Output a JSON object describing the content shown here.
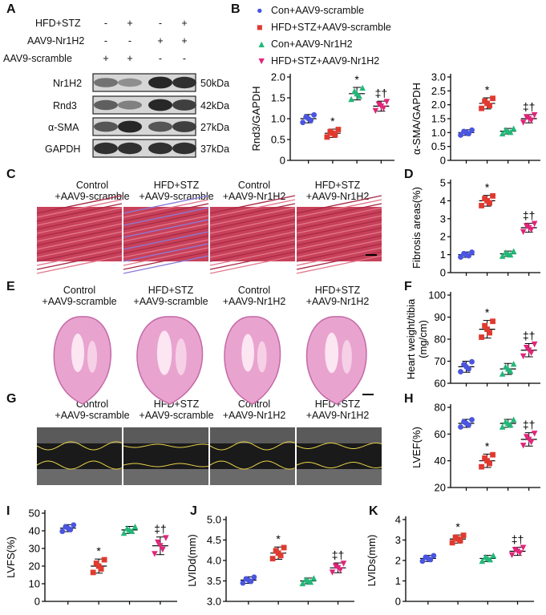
{
  "panels": {
    "A": "A",
    "B": "B",
    "C": "C",
    "D": "D",
    "E": "E",
    "F": "F",
    "G": "G",
    "H": "H",
    "I": "I",
    "J": "J",
    "K": "K"
  },
  "colors": {
    "con_scramble": "#4a55e0",
    "hfd_scramble": "#e03a2f",
    "con_nr1h2": "#22b878",
    "hfd_nr1h2": "#e0257a"
  },
  "panelA": {
    "rows": [
      "HFD+STZ",
      "AAV9-Nr1H2",
      "AAV9-scramble"
    ],
    "signs": [
      [
        "-",
        "+",
        "-",
        "+"
      ],
      [
        "-",
        "-",
        "+",
        "+"
      ],
      [
        "+",
        "+",
        "-",
        "-"
      ]
    ],
    "bands": [
      {
        "name": "Nr1H2",
        "kda": "50kDa",
        "intensity": [
          0.45,
          0.3,
          0.85,
          0.8
        ]
      },
      {
        "name": "Rnd3",
        "kda": "42kDa",
        "intensity": [
          0.55,
          0.38,
          0.85,
          0.72
        ]
      },
      {
        "name": "α-SMA",
        "kda": "27kDa",
        "intensity": [
          0.6,
          0.85,
          0.6,
          0.72
        ]
      },
      {
        "name": "GAPDH",
        "kda": "37kDa",
        "intensity": [
          0.8,
          0.8,
          0.8,
          0.8
        ]
      }
    ]
  },
  "legend": [
    "Con+AAV9-scramble",
    "HFD+STZ+AAV9-scramble",
    "Con+AAV9-Nr1H2",
    "HFD+STZ+AAV9-Nr1H2"
  ],
  "group_labels": {
    "C": [
      [
        "Control",
        "+AAV9-scramble"
      ],
      [
        "HFD+STZ",
        "+AAV9-scramble"
      ],
      [
        "Control",
        "+AAV9-Nr1H2"
      ],
      [
        "HFD+STZ",
        "+AAV9-Nr1H2"
      ]
    ],
    "E": [
      [
        "Control",
        "+AAV9-scramble"
      ],
      [
        "HFD+STZ",
        "+AAV9-scramble"
      ],
      [
        "Control",
        "+AAV9-Nr1H2"
      ],
      [
        "HFD+STZ",
        "+AAV9-Nr1H2"
      ]
    ],
    "G": [
      [
        "Control",
        "+AAV9-scramble"
      ],
      [
        "HFD+STZ",
        "+AAV9-scramble"
      ],
      [
        "Control",
        "+AAV9-Nr1H2"
      ],
      [
        "HFD+STZ",
        "+AAV9-Nr1H2"
      ]
    ]
  },
  "chart_data": [
    {
      "id": "rnd3",
      "type": "scatter",
      "ylabel": "Rnd3/GAPDH",
      "ylim": [
        0,
        2.0
      ],
      "ticks": [
        0,
        0.5,
        1.0,
        1.5,
        2.0
      ],
      "tick_labels": [
        "0",
        "0.5",
        "1.0",
        "1.5",
        "2.0"
      ],
      "means": [
        1.0,
        0.65,
        1.6,
        1.3
      ],
      "sd": [
        0.1,
        0.1,
        0.15,
        0.12
      ],
      "sig": [
        "",
        "*",
        "*",
        "‡†"
      ]
    },
    {
      "id": "asma",
      "type": "scatter",
      "ylabel": "α-SMA/GAPDH",
      "ylim": [
        0,
        3.0
      ],
      "ticks": [
        0,
        0.5,
        1.0,
        1.5,
        2.0,
        2.5,
        3.0
      ],
      "tick_labels": [
        "0",
        "0.5",
        "1.0",
        "1.5",
        "2.0",
        "2.5",
        "3.0"
      ],
      "means": [
        1.0,
        2.05,
        1.05,
        1.5
      ],
      "sd": [
        0.1,
        0.2,
        0.1,
        0.15
      ],
      "sig": [
        "",
        "*",
        "",
        "‡†"
      ]
    },
    {
      "id": "fibrosis",
      "type": "scatter",
      "ylabel": "Fibrosis areas(%)",
      "ylim": [
        0,
        5
      ],
      "ticks": [
        0,
        1,
        2,
        3,
        4,
        5
      ],
      "tick_labels": [
        "0",
        "1",
        "2",
        "3",
        "4",
        "5"
      ],
      "means": [
        1.0,
        4.0,
        1.05,
        2.5
      ],
      "sd": [
        0.15,
        0.3,
        0.15,
        0.25
      ],
      "sig": [
        "",
        "*",
        "",
        "‡†"
      ]
    },
    {
      "id": "hw",
      "type": "scatter",
      "ylabel": "Heart weight/tibia (mg/cm)",
      "ylim": [
        60,
        100
      ],
      "ticks": [
        60,
        70,
        80,
        90,
        100
      ],
      "tick_labels": [
        "60",
        "70",
        "80",
        "90",
        "100"
      ],
      "means": [
        67.5,
        84.5,
        66.5,
        75
      ],
      "sd": [
        2.5,
        4,
        2.5,
        3
      ],
      "sig": [
        "",
        "*",
        "",
        "‡†"
      ]
    },
    {
      "id": "lvef",
      "type": "scatter",
      "ylabel": "LVEF(%)",
      "ylim": [
        20,
        80
      ],
      "ticks": [
        20,
        40,
        60,
        80
      ],
      "tick_labels": [
        "20",
        "40",
        "60",
        "80"
      ],
      "means": [
        68,
        40,
        68,
        56
      ],
      "sd": [
        3,
        5,
        3,
        5
      ],
      "sig": [
        "",
        "*",
        "",
        "‡†"
      ]
    },
    {
      "id": "lvfs",
      "type": "scatter",
      "ylabel": "LVFS(%)",
      "ylim": [
        0,
        50
      ],
      "ticks": [
        0,
        10,
        20,
        30,
        40,
        50
      ],
      "tick_labels": [
        "0",
        "10",
        "20",
        "30",
        "40",
        "50"
      ],
      "means": [
        41.5,
        20,
        40.5,
        31.5
      ],
      "sd": [
        2,
        4,
        2,
        5
      ],
      "sig": [
        "",
        "*",
        "",
        "‡†"
      ]
    },
    {
      "id": "lvidd",
      "type": "scatter",
      "ylabel": "LVIDd(mm)",
      "ylim": [
        3.0,
        5.0
      ],
      "ticks": [
        3.0,
        3.5,
        4.0,
        4.5,
        5.0
      ],
      "tick_labels": [
        "3.0",
        "3.5",
        "4.0",
        "4.5",
        "5.0"
      ],
      "means": [
        3.52,
        4.18,
        3.5,
        3.82
      ],
      "sd": [
        0.08,
        0.15,
        0.07,
        0.12
      ],
      "sig": [
        "",
        "*",
        "",
        "‡†"
      ]
    },
    {
      "id": "lvids",
      "type": "scatter",
      "ylabel": "LVIDs(mm)",
      "ylim": [
        0,
        4
      ],
      "ticks": [
        0,
        1,
        2,
        3,
        4
      ],
      "tick_labels": [
        "0",
        "1",
        "2",
        "3",
        "4"
      ],
      "means": [
        2.1,
        3.05,
        2.1,
        2.45
      ],
      "sd": [
        0.15,
        0.2,
        0.15,
        0.2
      ],
      "sig": [
        "",
        "*",
        "",
        "‡†"
      ]
    }
  ]
}
